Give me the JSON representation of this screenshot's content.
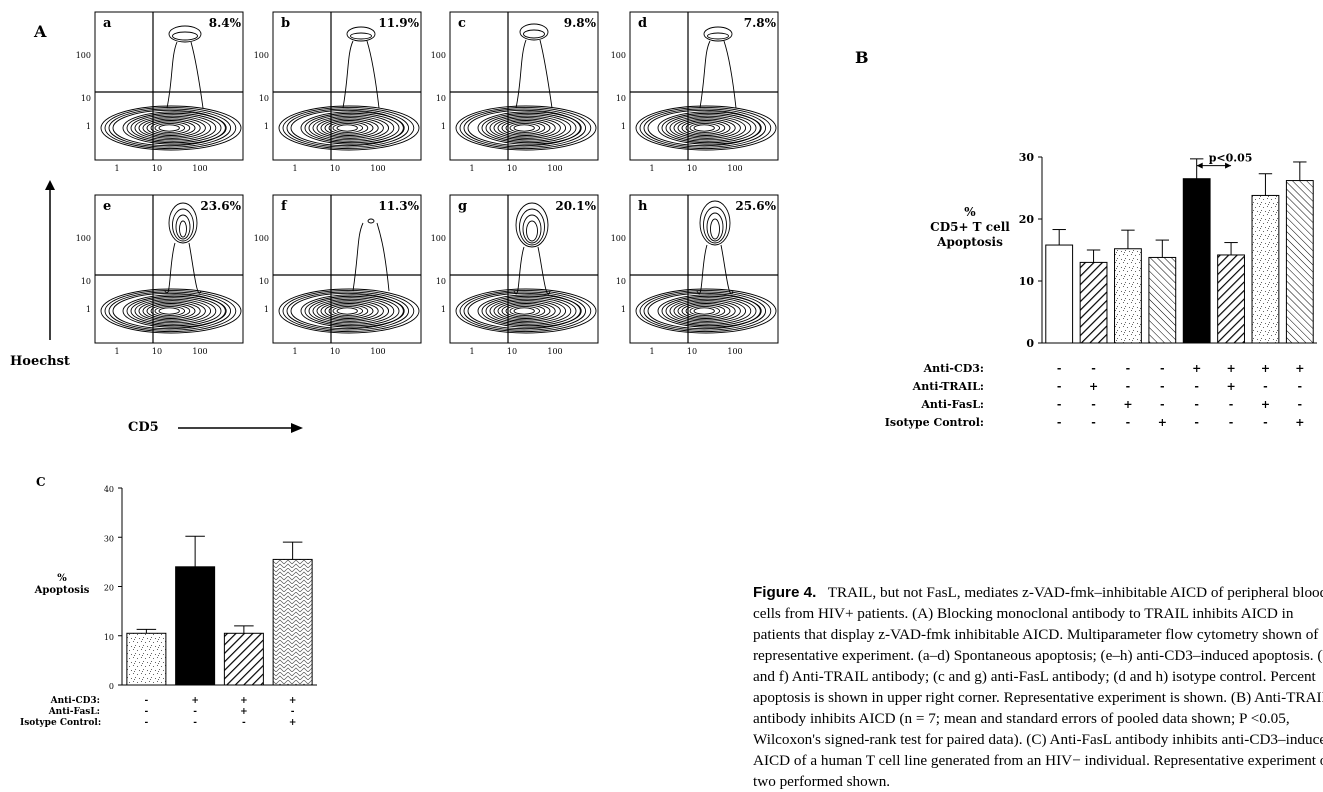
{
  "panel_labels": {
    "A": "A",
    "B": "B",
    "C": "C"
  },
  "panel_a": {
    "y_axis_title": "Hoechst",
    "x_axis_title": "CD5",
    "y_ticks": [
      "100",
      "10",
      "1"
    ],
    "x_ticks": [
      "1",
      "10",
      "100"
    ],
    "plots": [
      {
        "sub": "a",
        "pct": "8.4%"
      },
      {
        "sub": "b",
        "pct": "11.9%"
      },
      {
        "sub": "c",
        "pct": "9.8%"
      },
      {
        "sub": "d",
        "pct": "7.8%"
      },
      {
        "sub": "e",
        "pct": "23.6%"
      },
      {
        "sub": "f",
        "pct": "11.3%"
      },
      {
        "sub": "g",
        "pct": "20.1%"
      },
      {
        "sub": "h",
        "pct": "25.6%"
      }
    ]
  },
  "chart_data": [
    {
      "panel": "B",
      "type": "bar",
      "ylabel": "% CD5+ T cell Apoptosis",
      "ylabel_lines": [
        "%",
        "CD5+ T cell",
        "Apoptosis"
      ],
      "ylim": [
        0,
        30
      ],
      "yticks": [
        0,
        10,
        20,
        30
      ],
      "values": [
        15.8,
        13.0,
        15.2,
        13.8,
        26.5,
        14.2,
        23.8,
        26.2
      ],
      "errors": [
        2.5,
        2.0,
        3.0,
        2.8,
        3.2,
        2.0,
        3.5,
        3.0
      ],
      "fills": [
        "white",
        "diag",
        "speckle",
        "diag2",
        "black",
        "diag",
        "speckle",
        "diag2"
      ],
      "annotation": "p<0.05",
      "treatments": [
        {
          "label": "Anti-CD3:",
          "signs": [
            "-",
            "-",
            "-",
            "-",
            "+",
            "+",
            "+",
            "+"
          ]
        },
        {
          "label": "Anti-TRAIL:",
          "signs": [
            "-",
            "+",
            "-",
            "-",
            "-",
            "+",
            "-",
            "-"
          ]
        },
        {
          "label": "Anti-FasL:",
          "signs": [
            "-",
            "-",
            "+",
            "-",
            "-",
            "-",
            "+",
            "-"
          ]
        },
        {
          "label": "Isotype Control:",
          "signs": [
            "-",
            "-",
            "-",
            "+",
            "-",
            "-",
            "-",
            "+"
          ]
        }
      ]
    },
    {
      "panel": "C",
      "type": "bar",
      "ylabel": "% Apoptosis",
      "ylabel_lines": [
        "%",
        "Apoptosis"
      ],
      "ylim": [
        0,
        40
      ],
      "yticks": [
        0,
        10,
        20,
        30,
        40
      ],
      "values": [
        10.5,
        24.0,
        10.5,
        25.5
      ],
      "errors": [
        0.8,
        6.2,
        1.5,
        3.5
      ],
      "fills": [
        "speckle",
        "black",
        "diag",
        "cross"
      ],
      "treatments": [
        {
          "label": "Anti-CD3:",
          "signs": [
            "-",
            "+",
            "+",
            "+"
          ]
        },
        {
          "label": "Anti-FasL:",
          "signs": [
            "-",
            "-",
            "+",
            "-"
          ]
        },
        {
          "label": "Isotype Control:",
          "signs": [
            "-",
            "-",
            "-",
            "+"
          ]
        }
      ]
    }
  ],
  "caption": {
    "lead": "Figure 4.",
    "text": "TRAIL, but not FasL, mediates z-VAD-fmk–inhibitable AICD of peripheral blood T cells from HIV+ patients. (A) Blocking monoclonal antibody to TRAIL inhibits AICD in patients that display z-VAD-fmk inhibitable AICD. Multiparameter flow cytometry shown of representative experiment. (a–d) Spontaneous apoptosis; (e–h) anti-CD3–induced apoptosis. (b and f) Anti-TRAIL antibody; (c and g) anti-FasL antibody; (d and h) isotype control. Percent apoptosis is shown in upper right corner. Representative experiment is shown. (B) Anti-TRAIL antibody inhibits AICD (n = 7; mean and standard errors of pooled data shown; P <0.05, Wilcoxon's signed-rank test for paired data). (C) Anti-FasL antibody inhibits anti-CD3–induced AICD of a human T cell line generated from an HIV− individual. Representative experiment of two performed shown."
  }
}
